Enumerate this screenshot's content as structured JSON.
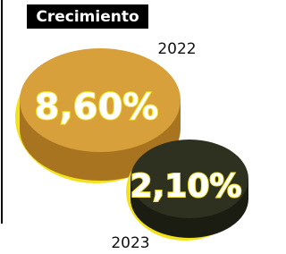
{
  "chart_data": {
    "type": "coin",
    "title": "Crecimiento",
    "categories": [
      "2022",
      "2023"
    ],
    "values": [
      8.6,
      2.1
    ],
    "value_labels": [
      "8,60%",
      "2,10%"
    ],
    "colors": [
      "#d8a03a",
      "#2e3120"
    ]
  }
}
